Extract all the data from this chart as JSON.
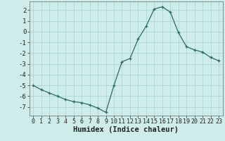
{
  "x": [
    0,
    1,
    2,
    3,
    4,
    5,
    6,
    7,
    8,
    9,
    10,
    11,
    12,
    13,
    14,
    15,
    16,
    17,
    18,
    19,
    20,
    21,
    22,
    23
  ],
  "y": [
    -5.0,
    -5.4,
    -5.7,
    -6.0,
    -6.3,
    -6.5,
    -6.6,
    -6.8,
    -7.1,
    -7.5,
    -5.0,
    -2.8,
    -2.5,
    -0.7,
    0.5,
    2.1,
    2.3,
    1.8,
    -0.1,
    -1.4,
    -1.7,
    -1.9,
    -2.4,
    -2.7
  ],
  "xlabel": "Humidex (Indice chaleur)",
  "ylim": [
    -7.8,
    2.8
  ],
  "xlim": [
    -0.5,
    23.5
  ],
  "yticks": [
    2,
    1,
    0,
    -1,
    -2,
    -3,
    -4,
    -5,
    -6,
    -7
  ],
  "xticks": [
    0,
    1,
    2,
    3,
    4,
    5,
    6,
    7,
    8,
    9,
    10,
    11,
    12,
    13,
    14,
    15,
    16,
    17,
    18,
    19,
    20,
    21,
    22,
    23
  ],
  "line_color": "#2d6b5e",
  "marker": "+",
  "bg_color": "#ceecea",
  "grid_color": "#a8d8d0",
  "tick_color": "#222222",
  "xlabel_fontsize": 7.5,
  "ytick_fontsize": 6.5,
  "xtick_fontsize": 6.0,
  "linewidth": 0.9,
  "markersize": 3.5,
  "markeredgewidth": 0.9
}
